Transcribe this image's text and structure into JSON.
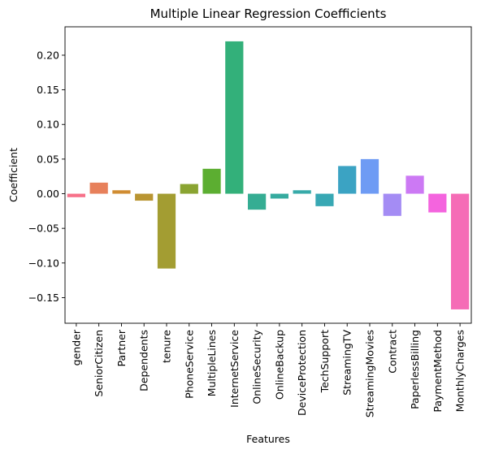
{
  "chart_data": {
    "type": "bar",
    "title": "Multiple Linear Regression Coefficients",
    "xlabel": "Features",
    "ylabel": "Coefficient",
    "ylim": [
      -0.187,
      0.241
    ],
    "yticks": [
      -0.15,
      -0.1,
      -0.05,
      0.0,
      0.05,
      0.1,
      0.15,
      0.2
    ],
    "ytick_labels": [
      "−0.15",
      "−0.10",
      "−0.05",
      "0.00",
      "0.05",
      "0.10",
      "0.15",
      "0.20"
    ],
    "grid": false,
    "categories": [
      "gender",
      "SeniorCitizen",
      "Partner",
      "Dependents",
      "tenure",
      "PhoneService",
      "MultipleLines",
      "InternetService",
      "OnlineSecurity",
      "OnlineBackup",
      "DeviceProtection",
      "TechSupport",
      "StreamingTV",
      "StreamingMovies",
      "Contract",
      "PaperlessBilling",
      "PaymentMethod",
      "MonthlyCharges"
    ],
    "values": [
      -0.005,
      0.016,
      0.005,
      -0.01,
      -0.108,
      0.014,
      0.036,
      0.22,
      -0.023,
      -0.007,
      0.005,
      -0.018,
      0.04,
      0.05,
      -0.032,
      0.026,
      -0.027,
      -0.167
    ],
    "colors": [
      "#f77189",
      "#e7805b",
      "#d08c32",
      "#b99532",
      "#a39d32",
      "#8aa432",
      "#5cae31",
      "#33b07a",
      "#35ad93",
      "#36ab9f",
      "#37aaa9",
      "#38a8b4",
      "#3ba3c3",
      "#6e9bf4",
      "#a48cf4",
      "#cc79f4",
      "#f464de",
      "#f56cb6"
    ]
  }
}
